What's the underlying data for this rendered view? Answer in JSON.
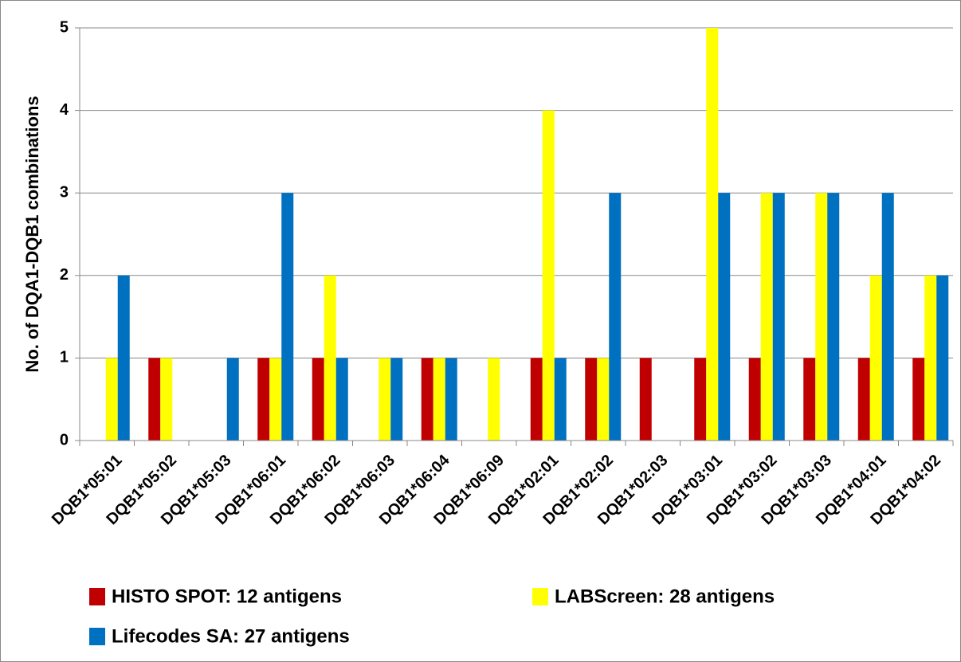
{
  "chart_data": {
    "type": "bar",
    "y_label": "No. of DQA1-DQB1 combinations",
    "categories": [
      "DQB1*05:01",
      "DQB1*05:02",
      "DQB1*05:03",
      "DQB1*06:01",
      "DQB1*06:02",
      "DQB1*06:03",
      "DQB1*06:04",
      "DQB1*06:09",
      "DQB1*02:01",
      "DQB1*02:02",
      "DQB1*02:03",
      "DQB1*03:01",
      "DQB1*03:02",
      "DQB1*03:03",
      "DQB1*04:01",
      "DQB1*04:02"
    ],
    "series": [
      {
        "name": "HISTO SPOT: 12 antigens",
        "color": "#c00000",
        "values": [
          0,
          1,
          0,
          1,
          1,
          0,
          1,
          0,
          1,
          1,
          1,
          1,
          1,
          1,
          1,
          1
        ]
      },
      {
        "name": "LABScreen: 28 antigens",
        "color": "#ffff00",
        "values": [
          1,
          1,
          0,
          1,
          2,
          1,
          1,
          1,
          4,
          1,
          0,
          5,
          3,
          3,
          2,
          2
        ]
      },
      {
        "name": "Lifecodes SA: 27 antigens",
        "color": "#0070c0",
        "values": [
          2,
          0,
          1,
          3,
          1,
          1,
          1,
          0,
          1,
          3,
          0,
          3,
          3,
          3,
          3,
          2
        ]
      }
    ],
    "ylim": [
      0,
      5
    ],
    "yticks": [
      0,
      1,
      2,
      3,
      4,
      5
    ],
    "grid": true,
    "legend": "bottom"
  }
}
